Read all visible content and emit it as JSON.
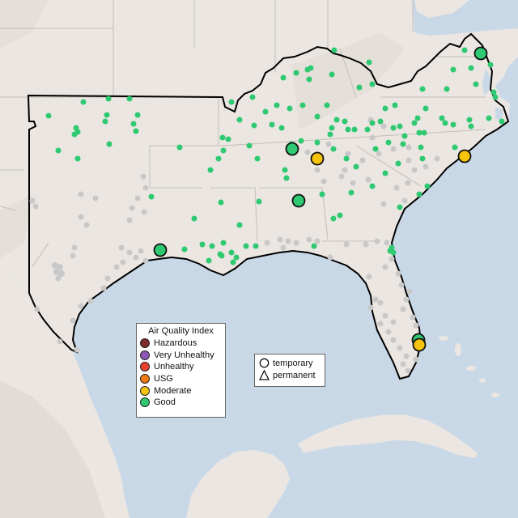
{
  "map": {
    "colors": {
      "water": "#c9d8e6",
      "land": "#ebe6e2",
      "land_shade": "#ddd8d2",
      "state_lines": "#c2bdb8",
      "region_outline": "#000000",
      "sensor_no_data": "#c8c8c8"
    },
    "region": "South-eastern United States air-quality monitor map"
  },
  "legend": {
    "title": "Air Quality Index",
    "categories": [
      {
        "label": "Hazardous",
        "color": "#7e2b2b"
      },
      {
        "label": "Very Unhealthy",
        "color": "#8e57b5"
      },
      {
        "label": "Unhealthy",
        "color": "#e8402f"
      },
      {
        "label": "USG",
        "color": "#f07b11"
      },
      {
        "label": "Moderate",
        "color": "#f6c30d"
      },
      {
        "label": "Good",
        "color": "#2ec971"
      }
    ]
  },
  "shape_legend": {
    "items": [
      {
        "label": "temporary",
        "icon": "circle-icon"
      },
      {
        "label": "permanent",
        "icon": "triangle-icon"
      }
    ]
  }
}
